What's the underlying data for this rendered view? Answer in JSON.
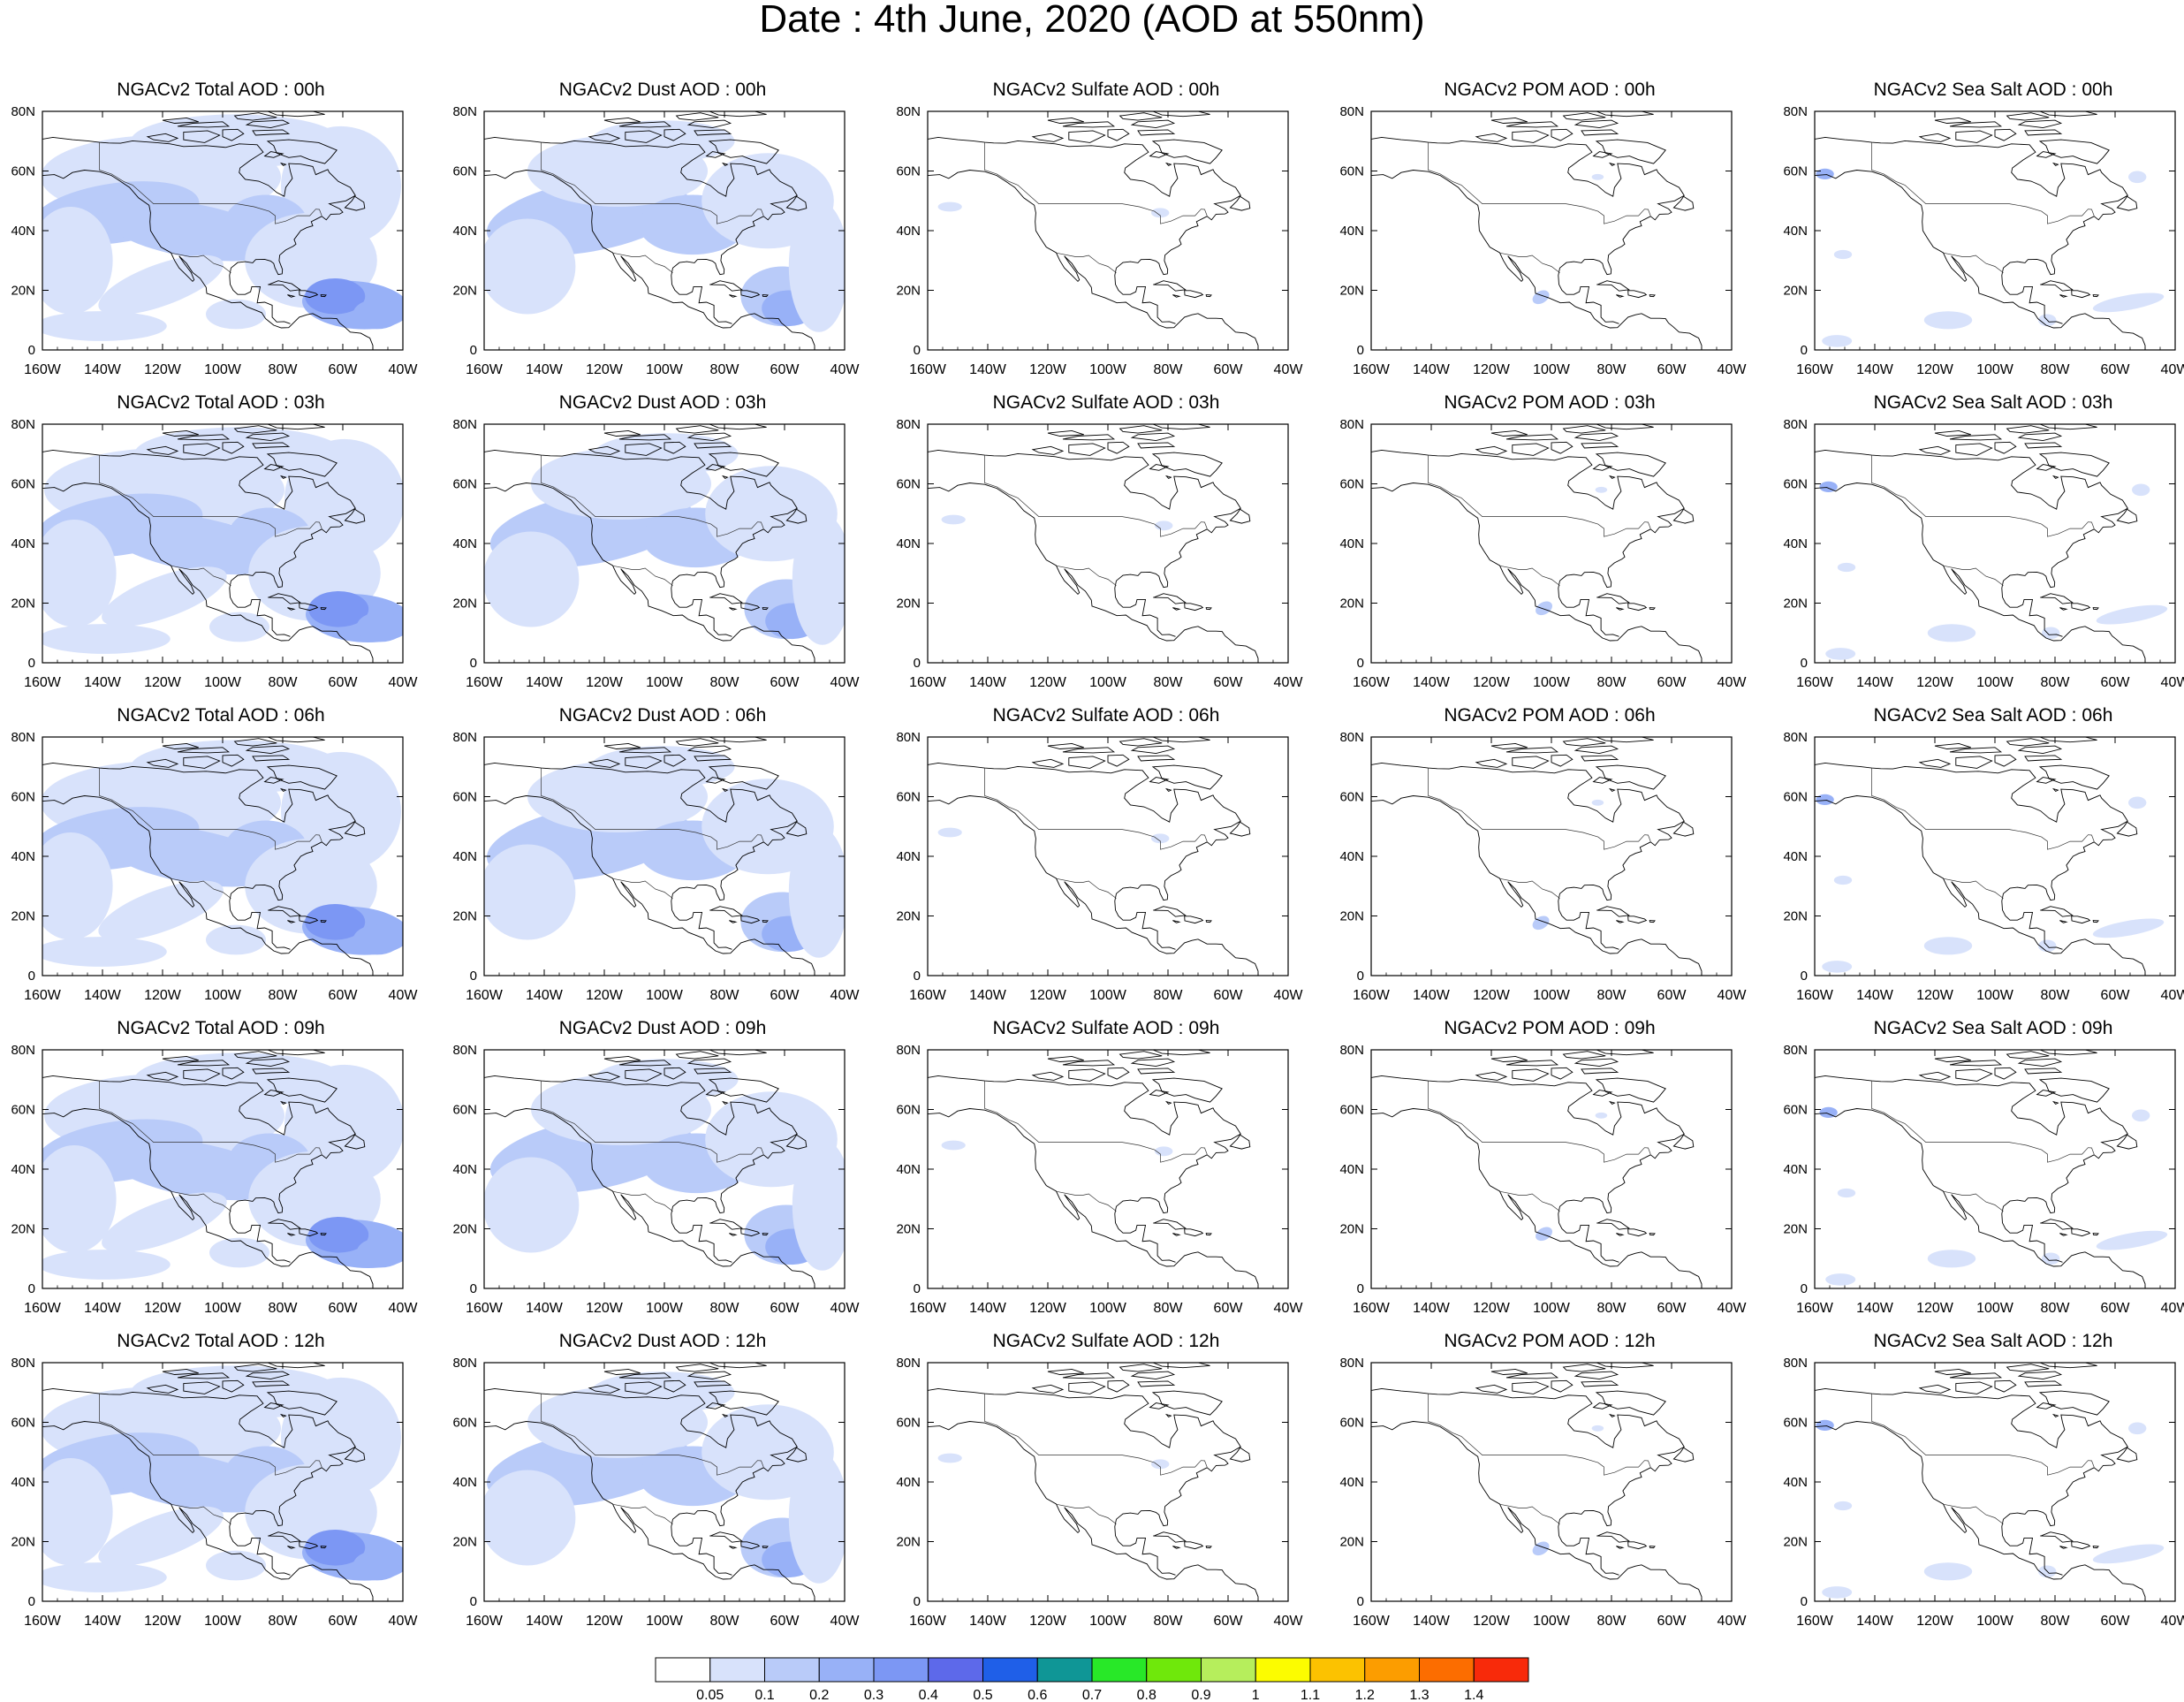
{
  "title": "Date : 4th June, 2020 (AOD at 550nm)",
  "panels": [
    {
      "title": "NGACv2 Total AOD : 00h",
      "species": "total",
      "hour": "00h"
    },
    {
      "title": "NGACv2 Dust AOD : 00h",
      "species": "dust",
      "hour": "00h"
    },
    {
      "title": "NGACv2 Sulfate AOD : 00h",
      "species": "sulfate",
      "hour": "00h"
    },
    {
      "title": "NGACv2 POM AOD : 00h",
      "species": "pom",
      "hour": "00h"
    },
    {
      "title": "NGACv2 Sea Salt AOD : 00h",
      "species": "seasalt",
      "hour": "00h"
    },
    {
      "title": "NGACv2 Total AOD : 03h",
      "species": "total",
      "hour": "03h"
    },
    {
      "title": "NGACv2 Dust AOD : 03h",
      "species": "dust",
      "hour": "03h"
    },
    {
      "title": "NGACv2 Sulfate AOD : 03h",
      "species": "sulfate",
      "hour": "03h"
    },
    {
      "title": "NGACv2 POM AOD : 03h",
      "species": "pom",
      "hour": "03h"
    },
    {
      "title": "NGACv2 Sea Salt AOD : 03h",
      "species": "seasalt",
      "hour": "03h"
    },
    {
      "title": "NGACv2 Total AOD : 06h",
      "species": "total",
      "hour": "06h"
    },
    {
      "title": "NGACv2 Dust AOD : 06h",
      "species": "dust",
      "hour": "06h"
    },
    {
      "title": "NGACv2 Sulfate AOD : 06h",
      "species": "sulfate",
      "hour": "06h"
    },
    {
      "title": "NGACv2 POM AOD : 06h",
      "species": "pom",
      "hour": "06h"
    },
    {
      "title": "NGACv2 Sea Salt AOD : 06h",
      "species": "seasalt",
      "hour": "06h"
    },
    {
      "title": "NGACv2 Total AOD : 09h",
      "species": "total",
      "hour": "09h"
    },
    {
      "title": "NGACv2 Dust AOD : 09h",
      "species": "dust",
      "hour": "09h"
    },
    {
      "title": "NGACv2 Sulfate AOD : 09h",
      "species": "sulfate",
      "hour": "09h"
    },
    {
      "title": "NGACv2 POM AOD : 09h",
      "species": "pom",
      "hour": "09h"
    },
    {
      "title": "NGACv2 Sea Salt  AOD : 09h",
      "species": "seasalt",
      "hour": "09h"
    },
    {
      "title": "NGACv2 Total AOD  : 12h",
      "species": "total",
      "hour": "12h"
    },
    {
      "title": "NGACv2 Dust AOD : 12h",
      "species": "dust",
      "hour": "12h"
    },
    {
      "title": "NGACv2 Sulfate AOD : 12h",
      "species": "sulfate",
      "hour": "12h"
    },
    {
      "title": "NGACv2 POM  AOD : 12h",
      "species": "pom",
      "hour": "12h"
    },
    {
      "title": "NGACv2 Sea Salt  AOD : 12h",
      "species": "seasalt",
      "hour": "12h"
    }
  ],
  "map": {
    "lon_range": [
      -160,
      -40
    ],
    "lat_range": [
      0,
      80
    ],
    "x_ticks": [
      "160W",
      "140W",
      "120W",
      "100W",
      "80W",
      "60W",
      "40W"
    ],
    "y_ticks": [
      "0",
      "20N",
      "40N",
      "60N",
      "80N"
    ]
  },
  "colorbar": {
    "labels": [
      "0.05",
      "0.1",
      "0.2",
      "0.3",
      "0.4",
      "0.5",
      "0.6",
      "0.7",
      "0.8",
      "0.9",
      "1",
      "1.1",
      "1.2",
      "1.3",
      "1.4"
    ],
    "colors": [
      "#ffffff",
      "#d8e2fb",
      "#b9cbf9",
      "#98b1f7",
      "#7c97f4",
      "#5d69ea",
      "#1f5fe8",
      "#0f9696",
      "#28e828",
      "#6fe80b",
      "#b6ee5c",
      "#fcfc00",
      "#fcc200",
      "#fc9d00",
      "#fc6d00",
      "#f82a0a"
    ]
  }
}
